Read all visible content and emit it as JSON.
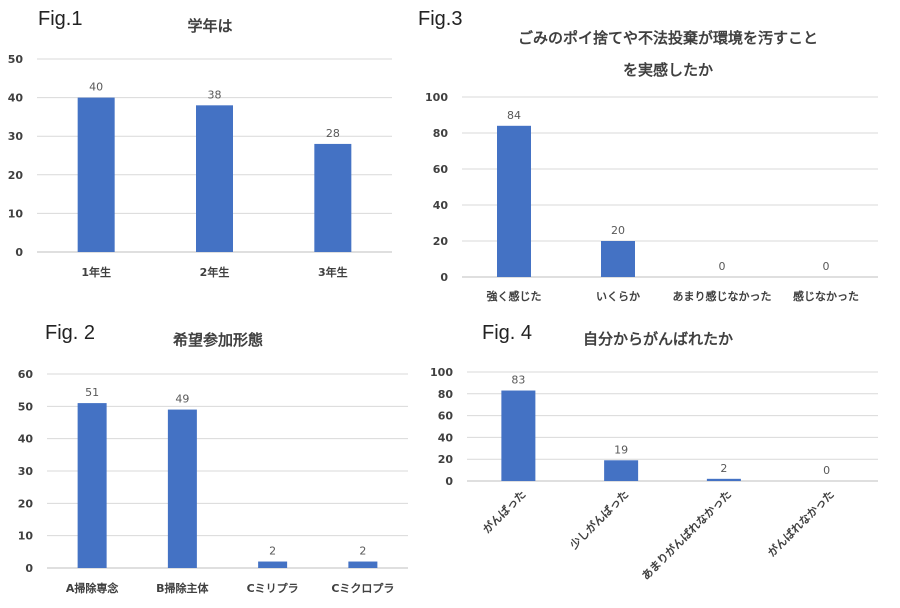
{
  "chart_data": [
    {
      "fig_label": "Fig.1",
      "type": "bar",
      "title": [
        "学年は"
      ],
      "categories": [
        "1年生",
        "2年生",
        "3年生"
      ],
      "values": [
        40,
        38,
        28
      ],
      "ylim": [
        0,
        50
      ],
      "yticks": [
        0,
        10,
        20,
        30,
        40,
        50
      ],
      "grid": true,
      "bar_color": "#4472C4",
      "legend": "none"
    },
    {
      "fig_label": "Fig.3",
      "type": "bar",
      "title": [
        "ごみのポイ捨てや不法投棄が環境を汚すこと",
        "を実感したか"
      ],
      "categories": [
        "強く感じた",
        "いくらか",
        "あまり感じなかった",
        "感じなかった"
      ],
      "values": [
        84,
        20,
        0,
        0
      ],
      "ylim": [
        0,
        100
      ],
      "yticks": [
        0,
        20,
        40,
        60,
        80,
        100
      ],
      "grid": true,
      "bar_color": "#4472C4",
      "legend": "none"
    },
    {
      "fig_label": "Fig. 2",
      "type": "bar",
      "title": [
        "希望参加形態"
      ],
      "categories": [
        "A掃除専念",
        "B掃除主体",
        "Cミリプラ",
        "Cミクロプラ"
      ],
      "values": [
        51,
        49,
        2,
        2
      ],
      "ylim": [
        0,
        60
      ],
      "yticks": [
        0,
        10,
        20,
        30,
        40,
        50,
        60
      ],
      "grid": true,
      "bar_color": "#4472C4",
      "legend": "none"
    },
    {
      "fig_label": "Fig. 4",
      "type": "bar",
      "title": [
        "自分からがんばれたか"
      ],
      "categories": [
        "がんばった",
        "少しがんばった",
        "あまりがんばれなかった",
        "がんばれなかった"
      ],
      "values": [
        83,
        19,
        2,
        0
      ],
      "ylim": [
        0,
        100
      ],
      "yticks": [
        0,
        20,
        40,
        60,
        80,
        100
      ],
      "grid": true,
      "rotated_category_labels": true,
      "bar_color": "#4472C4",
      "legend": "none"
    }
  ],
  "colors": {
    "bar": "#4472C4",
    "grid": "#d9d9d9",
    "axis": "#bfbfbf",
    "text": "#404040"
  }
}
